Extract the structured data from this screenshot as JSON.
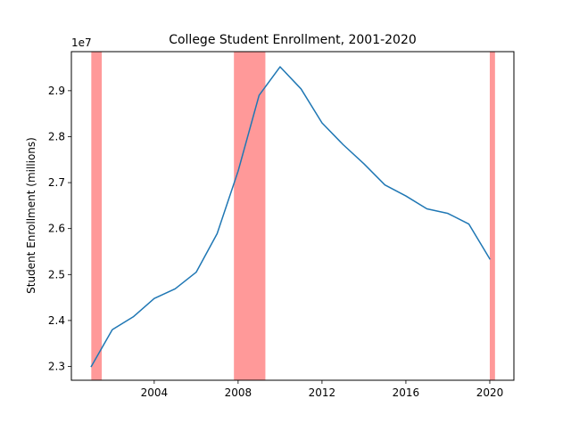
{
  "chart_data": {
    "type": "line",
    "title": "College Student Enrollment, 2001-2020",
    "xlabel": "",
    "ylabel": "Student Enrollment (millions)",
    "y_offset_label": "1e7",
    "y_scale": 10000000,
    "xlim": [
      2000.05,
      2021.15
    ],
    "ylim": [
      22700000,
      29850000
    ],
    "x_ticks": [
      2004,
      2008,
      2012,
      2016,
      2020
    ],
    "x_tick_labels": [
      "2004",
      "2008",
      "2012",
      "2016",
      "2020"
    ],
    "y_ticks": [
      23000000,
      24000000,
      25000000,
      26000000,
      27000000,
      28000000,
      29000000
    ],
    "y_tick_labels": [
      "2.3",
      "2.4",
      "2.5",
      "2.6",
      "2.7",
      "2.8",
      "2.9"
    ],
    "grid": false,
    "line_color": "#1f77b4",
    "recession_color": "#ff0000",
    "recession_periods": [
      {
        "start": 2001.0,
        "end": 2001.5
      },
      {
        "start": 2007.8,
        "end": 2009.3
      },
      {
        "start": 2020.0,
        "end": 2020.25
      }
    ],
    "x": [
      2001,
      2002,
      2003,
      2004,
      2005,
      2006,
      2007,
      2008,
      2009,
      2010,
      2011,
      2012,
      2013,
      2014,
      2015,
      2016,
      2017,
      2018,
      2019,
      2020
    ],
    "values": [
      23000000,
      23800000,
      24080000,
      24480000,
      24690000,
      25050000,
      25890000,
      27250000,
      28900000,
      29520000,
      29040000,
      28300000,
      27830000,
      27410000,
      26950000,
      26710000,
      26430000,
      26330000,
      26100000,
      25340000
    ]
  }
}
